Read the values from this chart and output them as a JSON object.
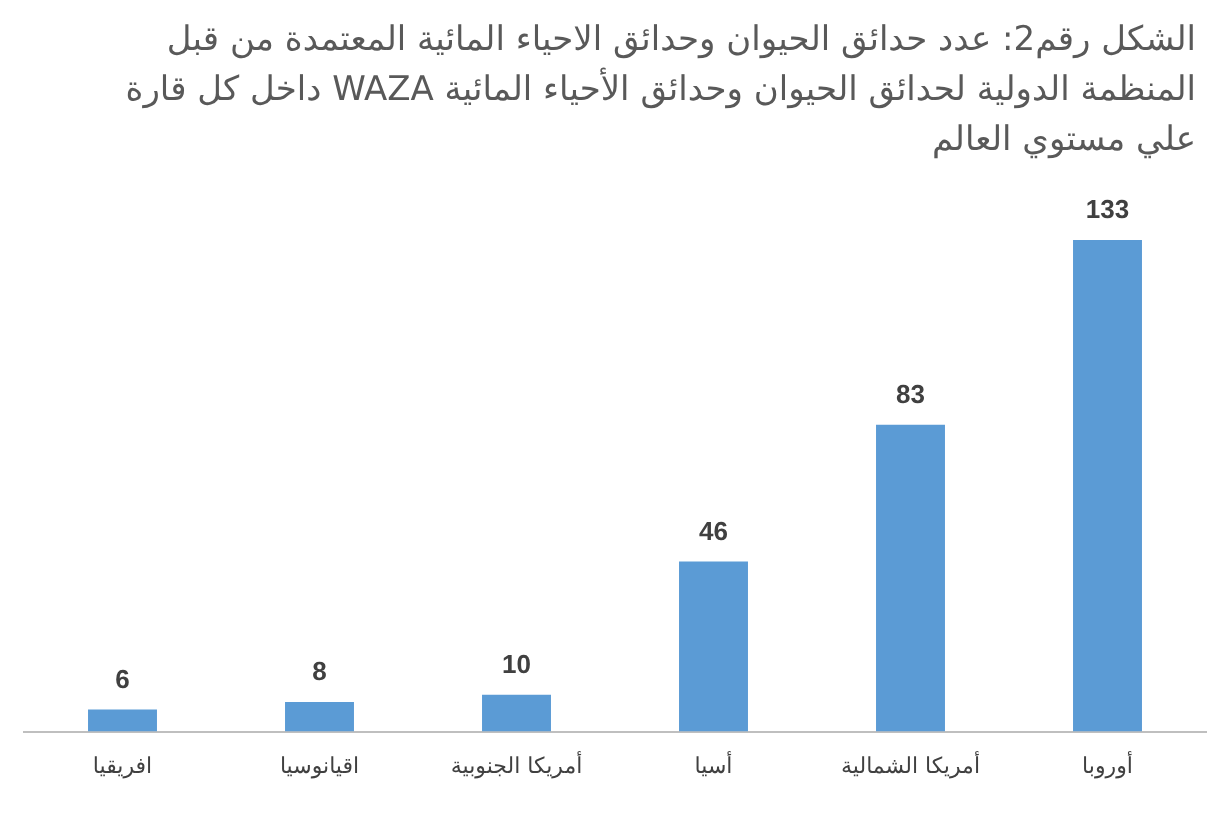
{
  "chart_data": {
    "type": "bar",
    "title": "الشكل رقم2: عدد حدائق الحيوان وحدائق الاحياء المائية المعتمدة من قبل المنظمة الدولية لحدائق الحيوان وحدائق الأحياء المائية  WAZA داخل كل قارة علي مستوي العالم",
    "categories": [
      "افريقيا",
      "اقيانوسيا",
      "أمريكا الجنوبية",
      "أسيا",
      "أمريكا الشمالية",
      "أوروبا"
    ],
    "values": [
      6,
      8,
      10,
      46,
      83,
      133
    ],
    "color": "#5b9bd5",
    "data_labels": true,
    "grid": false,
    "legend": false
  }
}
